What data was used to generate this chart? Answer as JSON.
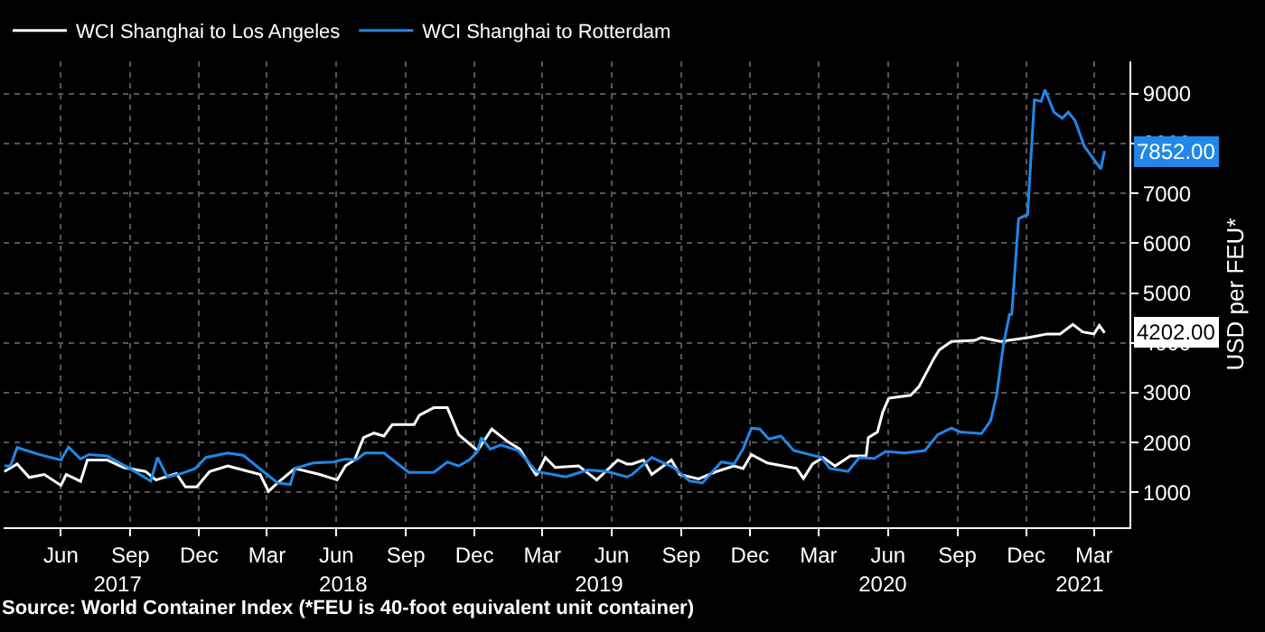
{
  "chart_data": {
    "type": "line",
    "ylabel": "USD per FEU*",
    "series": [
      {
        "name": "WCI Shanghai to Los Angeles",
        "color": "#ffffff",
        "x": [
          "2017-03-18",
          "2017-04-04",
          "2017-04-20",
          "2017-05-10",
          "2017-06-01",
          "2017-06-08",
          "2017-06-27",
          "2017-07-06",
          "2017-08-01",
          "2017-08-23",
          "2017-09-21",
          "2017-10-05",
          "2017-11-01",
          "2017-11-13",
          "2017-11-28",
          "2017-12-15",
          "2018-01-08",
          "2018-02-20",
          "2018-03-03",
          "2018-03-15",
          "2018-04-07",
          "2018-05-10",
          "2018-06-02",
          "2018-06-13",
          "2018-06-25",
          "2018-07-07",
          "2018-07-21",
          "2018-08-03",
          "2018-08-14",
          "2018-09-12",
          "2018-09-19",
          "2018-10-08",
          "2018-10-26",
          "2018-11-10",
          "2018-12-05",
          "2018-12-24",
          "2019-01-14",
          "2019-01-30",
          "2019-02-21",
          "2019-03-05",
          "2019-03-18",
          "2019-04-18",
          "2019-05-12",
          "2019-06-09",
          "2019-06-21",
          "2019-06-28",
          "2019-07-13",
          "2019-07-24",
          "2019-08-19",
          "2019-08-30",
          "2019-09-24",
          "2019-10-18",
          "2019-11-10",
          "2019-11-22",
          "2019-12-03",
          "2019-12-24",
          "2020-02-01",
          "2020-02-10",
          "2020-02-22",
          "2020-03-07",
          "2020-03-23",
          "2020-04-12",
          "2020-05-03",
          "2020-05-06",
          "2020-05-18",
          "2020-05-25",
          "2020-06-02",
          "2020-07-01",
          "2020-07-12",
          "2020-08-01",
          "2020-08-08",
          "2020-08-24",
          "2020-09-24",
          "2020-10-03",
          "2020-10-28",
          "2020-12-05",
          "2020-12-29",
          "2021-01-15",
          "2021-02-01",
          "2021-02-14",
          "2021-03-01",
          "2021-03-08",
          "2021-03-15"
        ],
        "value_labels": [
          null,
          null,
          null,
          null,
          null,
          null,
          null,
          null,
          null,
          null,
          null,
          null,
          null,
          null,
          null,
          null,
          null,
          null,
          null,
          null,
          null,
          null,
          null,
          null,
          null,
          null,
          null,
          null,
          null,
          null,
          null,
          null,
          null,
          null,
          null,
          null,
          null,
          null,
          null,
          null,
          null,
          null,
          null,
          null,
          null,
          null,
          null,
          null,
          null,
          null,
          null,
          null,
          null,
          null,
          null,
          null,
          null,
          null,
          null,
          null,
          null,
          null,
          null,
          null,
          null,
          null,
          null,
          null,
          null,
          null,
          null,
          null,
          null,
          null,
          null,
          null,
          null,
          null,
          null,
          null,
          null,
          null,
          "4202.00"
        ],
        "values": [
          1420,
          1570,
          1300,
          1360,
          1140,
          1360,
          1220,
          1650,
          1650,
          1500,
          1420,
          1250,
          1380,
          1110,
          1110,
          1420,
          1530,
          1360,
          1020,
          1190,
          1480,
          1360,
          1250,
          1530,
          1650,
          2100,
          2190,
          2130,
          2360,
          2360,
          2550,
          2700,
          2700,
          2160,
          1840,
          2270,
          2020,
          1870,
          1340,
          1700,
          1500,
          1530,
          1250,
          1650,
          1570,
          1570,
          1650,
          1360,
          1650,
          1360,
          1270,
          1420,
          1530,
          1480,
          1760,
          1590,
          1480,
          1280,
          1570,
          1700,
          1530,
          1730,
          1730,
          2100,
          2210,
          2610,
          2890,
          2950,
          3120,
          3690,
          3860,
          4030,
          4050,
          4110,
          4030,
          4110,
          4180,
          4180,
          4370,
          4220,
          4180,
          4350,
          4202
        ]
      },
      {
        "name": "WCI Shanghai to Rotterdam",
        "color": "#1f88e8",
        "x": [
          "2017-03-18",
          "2017-03-26",
          "2017-04-04",
          "2017-05-03",
          "2017-06-01",
          "2017-06-11",
          "2017-06-27",
          "2017-07-08",
          "2017-08-01",
          "2017-08-31",
          "2017-09-28",
          "2017-10-07",
          "2017-10-20",
          "2017-11-08",
          "2017-11-26",
          "2017-12-10",
          "2018-01-08",
          "2018-01-29",
          "2018-03-01",
          "2018-03-15",
          "2018-04-01",
          "2018-04-07",
          "2018-05-01",
          "2018-05-28",
          "2018-06-13",
          "2018-06-27",
          "2018-07-09",
          "2018-08-03",
          "2018-09-05",
          "2018-10-08",
          "2018-10-26",
          "2018-11-10",
          "2018-11-24",
          "2018-12-05",
          "2018-12-10",
          "2018-12-22",
          "2019-01-05",
          "2019-01-28",
          "2019-02-21",
          "2019-04-01",
          "2019-04-30",
          "2019-05-26",
          "2019-06-21",
          "2019-06-28",
          "2019-07-24",
          "2019-08-22",
          "2019-09-12",
          "2019-09-29",
          "2019-10-24",
          "2019-11-10",
          "2019-11-22",
          "2019-12-03",
          "2019-12-14",
          "2019-12-26",
          "2020-01-11",
          "2020-01-28",
          "2020-03-05",
          "2020-03-16",
          "2020-04-09",
          "2020-04-24",
          "2020-05-14",
          "2020-05-29",
          "2020-06-23",
          "2020-07-20",
          "2020-08-06",
          "2020-08-24",
          "2020-09-05",
          "2020-10-03",
          "2020-10-15",
          "2020-10-23",
          "2020-11-01",
          "2020-11-09",
          "2020-11-12",
          "2020-11-21",
          "2020-12-03",
          "2020-12-12",
          "2020-12-21",
          "2020-12-26",
          "2021-01-07",
          "2021-01-18",
          "2021-01-26",
          "2021-02-04",
          "2021-02-16",
          "2021-03-10",
          "2021-03-15"
        ],
        "value_labels": [
          null,
          null,
          null,
          null,
          null,
          null,
          null,
          null,
          null,
          null,
          null,
          null,
          null,
          null,
          null,
          null,
          null,
          null,
          null,
          null,
          null,
          null,
          null,
          null,
          null,
          null,
          null,
          null,
          null,
          null,
          null,
          null,
          null,
          null,
          null,
          null,
          null,
          null,
          null,
          null,
          null,
          null,
          null,
          null,
          null,
          null,
          null,
          null,
          null,
          null,
          null,
          null,
          null,
          null,
          null,
          null,
          null,
          null,
          null,
          null,
          null,
          null,
          null,
          null,
          null,
          null,
          null,
          null,
          null,
          null,
          null,
          null,
          null,
          null,
          null,
          null,
          null,
          null,
          null,
          null,
          null,
          null,
          null,
          null,
          "7852.00"
        ],
        "values": [
          1530,
          1530,
          1900,
          1760,
          1650,
          1910,
          1670,
          1760,
          1730,
          1480,
          1230,
          1700,
          1310,
          1380,
          1480,
          1700,
          1790,
          1740,
          1360,
          1190,
          1160,
          1480,
          1590,
          1610,
          1670,
          1650,
          1790,
          1790,
          1400,
          1400,
          1610,
          1530,
          1650,
          1820,
          2100,
          1870,
          1950,
          1840,
          1420,
          1310,
          1450,
          1420,
          1310,
          1360,
          1700,
          1500,
          1230,
          1190,
          1610,
          1570,
          1870,
          2290,
          2270,
          2070,
          2130,
          1840,
          1700,
          1480,
          1420,
          1700,
          1680,
          1820,
          1790,
          1840,
          2160,
          2290,
          2210,
          2180,
          2440,
          2950,
          3970,
          4570,
          4570,
          6490,
          6580,
          8880,
          8850,
          9080,
          8630,
          8510,
          8630,
          8460,
          7950,
          7490,
          7852
        ]
      }
    ],
    "ylim": [
      300,
      9650
    ],
    "yticks": [
      1000,
      2000,
      3000,
      4000,
      5000,
      6000,
      7000,
      8000,
      9000
    ],
    "xlim": [
      "2017-03-17",
      "2021-04-17"
    ],
    "xticks": [
      {
        "value": "2017-06-01",
        "label": "Jun"
      },
      {
        "value": "2017-09-01",
        "label": "Sep"
      },
      {
        "value": "2017-12-01",
        "label": "Dec"
      },
      {
        "value": "2018-03-01",
        "label": "Mar"
      },
      {
        "value": "2018-06-01",
        "label": "Jun"
      },
      {
        "value": "2018-09-01",
        "label": "Sep"
      },
      {
        "value": "2018-12-01",
        "label": "Dec"
      },
      {
        "value": "2019-03-01",
        "label": "Mar"
      },
      {
        "value": "2019-06-01",
        "label": "Jun"
      },
      {
        "value": "2019-09-01",
        "label": "Sep"
      },
      {
        "value": "2019-12-01",
        "label": "Dec"
      },
      {
        "value": "2020-03-01",
        "label": "Mar"
      },
      {
        "value": "2020-06-01",
        "label": "Jun"
      },
      {
        "value": "2020-09-01",
        "label": "Sep"
      },
      {
        "value": "2020-12-01",
        "label": "Dec"
      },
      {
        "value": "2021-03-01",
        "label": "Mar"
      }
    ],
    "grid": true,
    "legend": "top left",
    "marker": "none",
    "line_style": "solid",
    "x2lim": [
      "2017-03-17",
      "2021-04-17"
    ],
    "x2ticks": [
      {
        "value": "2017-08-15",
        "label": "2017"
      },
      {
        "value": "2018-06-10",
        "label": "2018"
      },
      {
        "value": "2019-05-15",
        "label": "2019"
      },
      {
        "value": "2020-05-25",
        "label": "2020"
      },
      {
        "value": "2021-02-10",
        "label": "2021"
      }
    ],
    "annotations": [
      "Source: World Container Index (*FEU is 40-foot equivalent unit container)"
    ]
  }
}
